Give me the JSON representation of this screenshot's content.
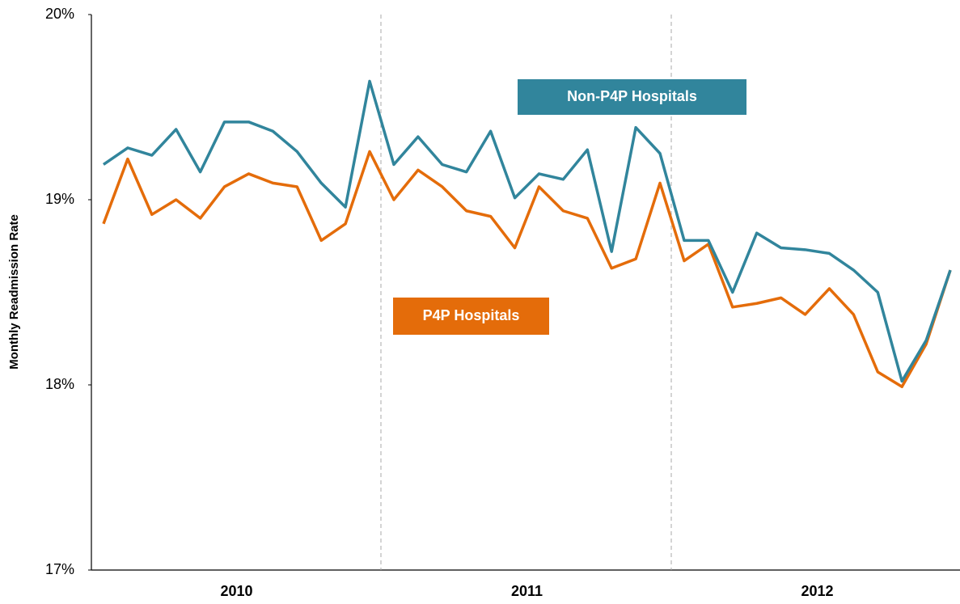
{
  "chart_data": {
    "type": "line",
    "y_label": "Monthly Readmission Rate",
    "categories": [
      null,
      null,
      null,
      null,
      null,
      null,
      null,
      null,
      null,
      null,
      null,
      null,
      null,
      null,
      null,
      null,
      null,
      null,
      null,
      null,
      null,
      null,
      null,
      null,
      null,
      null,
      null,
      null,
      null,
      null,
      null,
      null,
      null,
      null,
      null,
      null
    ],
    "year_labels": [
      "2010",
      "2011",
      "2012"
    ],
    "series": [
      {
        "name": "Non-P4P Hospitals",
        "color": "#31859c",
        "values": [
          19.19,
          19.28,
          19.24,
          19.38,
          19.15,
          19.42,
          19.42,
          19.37,
          19.26,
          19.09,
          18.96,
          19.64,
          19.19,
          19.34,
          19.19,
          19.15,
          19.37,
          19.01,
          19.14,
          19.11,
          19.27,
          18.72,
          19.39,
          19.25,
          18.78,
          18.78,
          18.5,
          18.82,
          18.74,
          18.73,
          18.71,
          18.62,
          18.5,
          18.02,
          18.24,
          18.62
        ]
      },
      {
        "name": "P4P Hospitals",
        "color": "#e46c0a",
        "values": [
          18.87,
          19.22,
          18.92,
          19.0,
          18.9,
          19.07,
          19.14,
          19.09,
          19.07,
          18.78,
          18.87,
          19.26,
          19.0,
          19.16,
          19.07,
          18.94,
          18.91,
          18.74,
          19.07,
          18.94,
          18.9,
          18.63,
          18.68,
          19.09,
          18.67,
          18.76,
          18.42,
          18.44,
          18.47,
          18.38,
          18.52,
          18.38,
          18.07,
          17.99,
          18.22,
          18.62
        ]
      }
    ],
    "ylim": [
      17,
      20
    ],
    "yticks": [
      {
        "value": 17,
        "label": "17%"
      },
      {
        "value": 18,
        "label": "18%"
      },
      {
        "value": 19,
        "label": "19%"
      },
      {
        "value": 20,
        "label": "20%"
      }
    ]
  }
}
